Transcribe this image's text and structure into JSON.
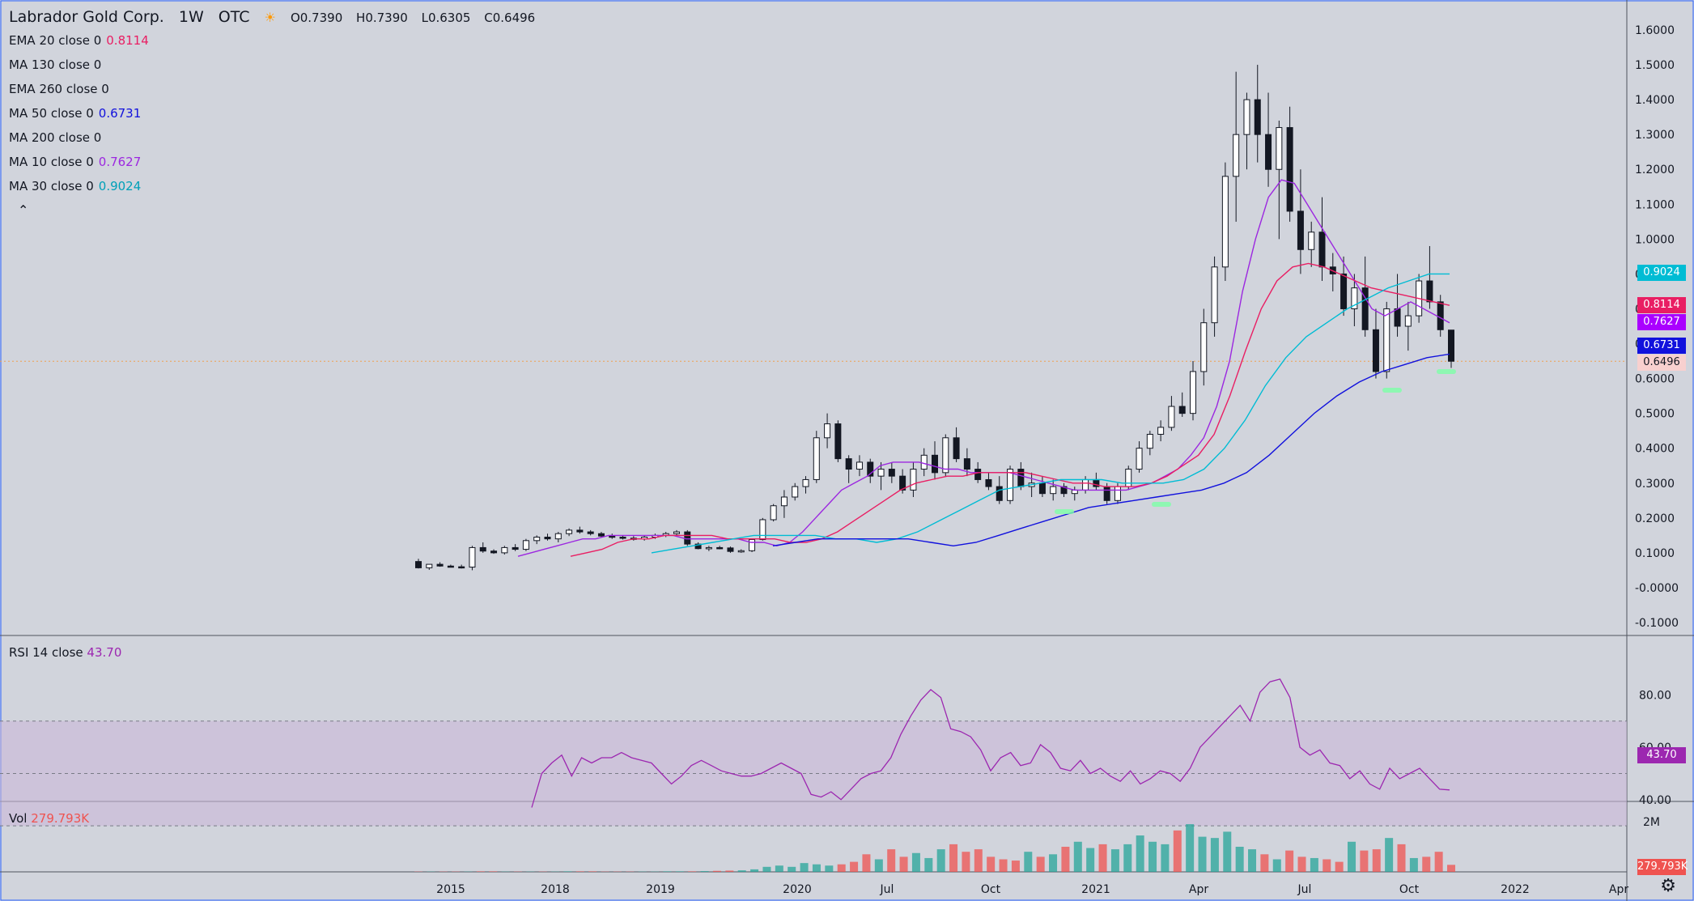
{
  "header": {
    "symbol": "Labrador Gold Corp.",
    "interval": "1W",
    "exchange": "OTC",
    "ohlc": {
      "o_label": "O",
      "o": "0.7390",
      "h_label": "H",
      "h": "0.7390",
      "l_label": "L",
      "l": "0.6305",
      "c_label": "C",
      "c": "0.6496"
    }
  },
  "indicators": [
    {
      "label": "EMA 20 close 0",
      "value": "0.8114",
      "color": "#e91e63"
    },
    {
      "label": "MA 130 close 0",
      "value": "",
      "color": "#131722"
    },
    {
      "label": "EMA 260 close 0",
      "value": "",
      "color": "#131722"
    },
    {
      "label": "MA 50 close 0",
      "value": "0.6731",
      "color": "#1111dd"
    },
    {
      "label": "MA 200 close 0",
      "value": "",
      "color": "#131722"
    },
    {
      "label": "MA 10 close 0",
      "value": "0.7627",
      "color": "#9c27e0"
    },
    {
      "label": "MA 30 close 0",
      "value": "0.9024",
      "color": "#00bcd4"
    }
  ],
  "rsi": {
    "label": "RSI 14 close",
    "value": "43.70",
    "color": "#9c27b0"
  },
  "volume": {
    "label": "Vol",
    "value": "279.793K",
    "color": "#ef5350"
  },
  "price_tags": [
    {
      "value": "0.9024",
      "price": 0.9024,
      "color": "#00bcd4"
    },
    {
      "value": "0.8114",
      "price": 0.8114,
      "color": "#e91e63"
    },
    {
      "value": "0.7627",
      "price": 0.7627,
      "color": "#aa00ff"
    },
    {
      "value": "0.6731",
      "price": 0.6731,
      "color": "#1111dd"
    },
    {
      "value": "0.6496",
      "price": 0.6496,
      "color": "#f8d0cf"
    }
  ],
  "chart_data": {
    "type": "candlestick",
    "y_axis": {
      "ticks": [
        "1.6000",
        "1.5000",
        "1.4000",
        "1.3000",
        "1.2000",
        "1.1000",
        "1.0000",
        "0.9000",
        "0.8000",
        "0.7000",
        "0.6000",
        "0.5000",
        "0.4000",
        "0.3000",
        "0.2000",
        "0.1000",
        "-0.0000",
        "-0.1000"
      ],
      "range": [
        -0.1,
        1.6
      ]
    },
    "rsi_axis": {
      "ticks": [
        "80.00",
        "60.00",
        "40.00"
      ],
      "bands": [
        30,
        50,
        70
      ]
    },
    "volume_axis": {
      "ticks": [
        "2M"
      ]
    },
    "x_axis": {
      "labels": [
        "2015",
        "2018",
        "2019",
        "2020",
        "Jul",
        "Oct",
        "2021",
        "Apr",
        "Jul",
        "Oct",
        "2022",
        "Apr"
      ]
    },
    "candles": [
      [
        0.075,
        0.083,
        0.055,
        0.057
      ],
      [
        0.057,
        0.067,
        0.051,
        0.067
      ],
      [
        0.067,
        0.073,
        0.06,
        0.062
      ],
      [
        0.062,
        0.066,
        0.058,
        0.06
      ],
      [
        0.06,
        0.066,
        0.055,
        0.059
      ],
      [
        0.059,
        0.12,
        0.05,
        0.115
      ],
      [
        0.115,
        0.13,
        0.1,
        0.105
      ],
      [
        0.105,
        0.11,
        0.097,
        0.1
      ],
      [
        0.1,
        0.12,
        0.095,
        0.115
      ],
      [
        0.115,
        0.125,
        0.105,
        0.11
      ],
      [
        0.11,
        0.14,
        0.105,
        0.135
      ],
      [
        0.135,
        0.15,
        0.125,
        0.145
      ],
      [
        0.145,
        0.155,
        0.135,
        0.14
      ],
      [
        0.14,
        0.16,
        0.13,
        0.155
      ],
      [
        0.155,
        0.17,
        0.148,
        0.165
      ],
      [
        0.165,
        0.175,
        0.155,
        0.16
      ],
      [
        0.16,
        0.165,
        0.15,
        0.155
      ],
      [
        0.155,
        0.16,
        0.145,
        0.148
      ],
      [
        0.148,
        0.155,
        0.14,
        0.145
      ],
      [
        0.145,
        0.15,
        0.138,
        0.142
      ],
      [
        0.142,
        0.148,
        0.135,
        0.14
      ],
      [
        0.14,
        0.15,
        0.135,
        0.145
      ],
      [
        0.145,
        0.155,
        0.14,
        0.15
      ],
      [
        0.15,
        0.16,
        0.145,
        0.155
      ],
      [
        0.155,
        0.165,
        0.15,
        0.16
      ],
      [
        0.16,
        0.165,
        0.12,
        0.125
      ],
      [
        0.125,
        0.13,
        0.11,
        0.112
      ],
      [
        0.112,
        0.12,
        0.105,
        0.115
      ],
      [
        0.115,
        0.12,
        0.11,
        0.114
      ],
      [
        0.114,
        0.118,
        0.1,
        0.104
      ],
      [
        0.104,
        0.11,
        0.1,
        0.106
      ],
      [
        0.106,
        0.14,
        0.102,
        0.138
      ],
      [
        0.138,
        0.2,
        0.135,
        0.195
      ],
      [
        0.195,
        0.24,
        0.19,
        0.235
      ],
      [
        0.235,
        0.28,
        0.2,
        0.26
      ],
      [
        0.26,
        0.3,
        0.25,
        0.29
      ],
      [
        0.29,
        0.32,
        0.27,
        0.31
      ],
      [
        0.31,
        0.45,
        0.3,
        0.43
      ],
      [
        0.43,
        0.5,
        0.4,
        0.47
      ],
      [
        0.47,
        0.48,
        0.36,
        0.37
      ],
      [
        0.37,
        0.38,
        0.3,
        0.34
      ],
      [
        0.34,
        0.38,
        0.32,
        0.36
      ],
      [
        0.36,
        0.37,
        0.3,
        0.32
      ],
      [
        0.32,
        0.36,
        0.28,
        0.34
      ],
      [
        0.34,
        0.36,
        0.3,
        0.32
      ],
      [
        0.32,
        0.34,
        0.27,
        0.28
      ],
      [
        0.28,
        0.36,
        0.26,
        0.34
      ],
      [
        0.34,
        0.4,
        0.32,
        0.38
      ],
      [
        0.38,
        0.42,
        0.31,
        0.33
      ],
      [
        0.33,
        0.44,
        0.32,
        0.43
      ],
      [
        0.43,
        0.46,
        0.36,
        0.37
      ],
      [
        0.37,
        0.4,
        0.32,
        0.34
      ],
      [
        0.34,
        0.36,
        0.3,
        0.31
      ],
      [
        0.31,
        0.33,
        0.28,
        0.29
      ],
      [
        0.29,
        0.32,
        0.24,
        0.25
      ],
      [
        0.25,
        0.35,
        0.24,
        0.34
      ],
      [
        0.34,
        0.36,
        0.28,
        0.29
      ],
      [
        0.29,
        0.33,
        0.26,
        0.3
      ],
      [
        0.3,
        0.32,
        0.26,
        0.27
      ],
      [
        0.27,
        0.31,
        0.25,
        0.29
      ],
      [
        0.29,
        0.3,
        0.26,
        0.27
      ],
      [
        0.27,
        0.29,
        0.25,
        0.28
      ],
      [
        0.28,
        0.32,
        0.27,
        0.31
      ],
      [
        0.31,
        0.33,
        0.28,
        0.29
      ],
      [
        0.29,
        0.3,
        0.24,
        0.25
      ],
      [
        0.25,
        0.3,
        0.24,
        0.29
      ],
      [
        0.29,
        0.35,
        0.28,
        0.34
      ],
      [
        0.34,
        0.42,
        0.33,
        0.4
      ],
      [
        0.4,
        0.45,
        0.38,
        0.44
      ],
      [
        0.44,
        0.48,
        0.42,
        0.46
      ],
      [
        0.46,
        0.55,
        0.45,
        0.52
      ],
      [
        0.52,
        0.56,
        0.49,
        0.5
      ],
      [
        0.5,
        0.65,
        0.48,
        0.62
      ],
      [
        0.62,
        0.8,
        0.58,
        0.76
      ],
      [
        0.76,
        0.95,
        0.72,
        0.92
      ],
      [
        0.92,
        1.22,
        0.88,
        1.18
      ],
      [
        1.18,
        1.48,
        1.05,
        1.3
      ],
      [
        1.3,
        1.42,
        1.2,
        1.4
      ],
      [
        1.4,
        1.5,
        1.22,
        1.3
      ],
      [
        1.3,
        1.42,
        1.15,
        1.2
      ],
      [
        1.2,
        1.34,
        1.0,
        1.32
      ],
      [
        1.32,
        1.38,
        1.05,
        1.08
      ],
      [
        1.08,
        1.2,
        0.9,
        0.97
      ],
      [
        0.97,
        1.05,
        0.92,
        1.02
      ],
      [
        1.02,
        1.12,
        0.88,
        0.92
      ],
      [
        0.92,
        0.96,
        0.85,
        0.9
      ],
      [
        0.9,
        0.95,
        0.78,
        0.8
      ],
      [
        0.8,
        0.9,
        0.75,
        0.86
      ],
      [
        0.86,
        0.95,
        0.72,
        0.74
      ],
      [
        0.74,
        0.8,
        0.6,
        0.62
      ],
      [
        0.62,
        0.82,
        0.6,
        0.8
      ],
      [
        0.8,
        0.9,
        0.72,
        0.75
      ],
      [
        0.75,
        0.82,
        0.68,
        0.78
      ],
      [
        0.78,
        0.9,
        0.76,
        0.88
      ],
      [
        0.88,
        0.98,
        0.8,
        0.82
      ],
      [
        0.82,
        0.84,
        0.72,
        0.74
      ],
      [
        0.739,
        0.739,
        0.6305,
        0.6496
      ]
    ],
    "series": [
      {
        "name": "MA 10 close 0",
        "color": "#9c27e0",
        "values": [
          0.09,
          0.1,
          0.11,
          0.12,
          0.13,
          0.14,
          0.14,
          0.15,
          0.15,
          0.15,
          0.15,
          0.15,
          0.15,
          0.14,
          0.14,
          0.14,
          0.14,
          0.14,
          0.13,
          0.13,
          0.12,
          0.13,
          0.16,
          0.2,
          0.24,
          0.28,
          0.3,
          0.32,
          0.35,
          0.36,
          0.36,
          0.36,
          0.35,
          0.34,
          0.34,
          0.33,
          0.33,
          0.33,
          0.33,
          0.32,
          0.31,
          0.3,
          0.29,
          0.28,
          0.28,
          0.28,
          0.28,
          0.28,
          0.29,
          0.3,
          0.32,
          0.34,
          0.38,
          0.43,
          0.52,
          0.65,
          0.85,
          1.0,
          1.12,
          1.17,
          1.16,
          1.1,
          1.04,
          0.98,
          0.92,
          0.86,
          0.8,
          0.78,
          0.8,
          0.82,
          0.8,
          0.78,
          0.76
        ]
      },
      {
        "name": "EMA 20 close 0",
        "color": "#e91e63",
        "values": [
          0.09,
          0.1,
          0.11,
          0.13,
          0.14,
          0.14,
          0.15,
          0.15,
          0.15,
          0.15,
          0.14,
          0.14,
          0.14,
          0.14,
          0.13,
          0.13,
          0.14,
          0.16,
          0.19,
          0.22,
          0.25,
          0.28,
          0.3,
          0.31,
          0.32,
          0.32,
          0.33,
          0.33,
          0.33,
          0.33,
          0.32,
          0.31,
          0.3,
          0.3,
          0.29,
          0.29,
          0.29,
          0.3,
          0.32,
          0.35,
          0.38,
          0.44,
          0.55,
          0.68,
          0.8,
          0.88,
          0.92,
          0.93,
          0.92,
          0.9,
          0.88,
          0.86,
          0.85,
          0.84,
          0.83,
          0.82,
          0.81
        ]
      },
      {
        "name": "MA 30 close 0",
        "color": "#00bcd4",
        "values": [
          0.1,
          0.11,
          0.12,
          0.13,
          0.14,
          0.15,
          0.15,
          0.15,
          0.15,
          0.14,
          0.14,
          0.13,
          0.14,
          0.16,
          0.19,
          0.22,
          0.25,
          0.28,
          0.29,
          0.3,
          0.31,
          0.31,
          0.31,
          0.3,
          0.3,
          0.3,
          0.31,
          0.34,
          0.4,
          0.48,
          0.58,
          0.66,
          0.72,
          0.76,
          0.8,
          0.83,
          0.86,
          0.88,
          0.9,
          0.9
        ]
      },
      {
        "name": "MA 50 close 0",
        "color": "#1111dd",
        "values": [
          0.12,
          0.13,
          0.14,
          0.14,
          0.14,
          0.14,
          0.14,
          0.13,
          0.12,
          0.13,
          0.15,
          0.17,
          0.19,
          0.21,
          0.23,
          0.24,
          0.25,
          0.26,
          0.27,
          0.28,
          0.3,
          0.33,
          0.38,
          0.44,
          0.5,
          0.55,
          0.59,
          0.62,
          0.64,
          0.66,
          0.67
        ]
      }
    ],
    "rsi_values": [
      37,
      50,
      54,
      57,
      49,
      56,
      54,
      56,
      56,
      58,
      56,
      55,
      54,
      50,
      46,
      49,
      53,
      55,
      53,
      51,
      50,
      49,
      49,
      50,
      52,
      54,
      52,
      50,
      42,
      41,
      43,
      40,
      44,
      48,
      50,
      51,
      56,
      65,
      72,
      78,
      82,
      79,
      67,
      66,
      64,
      59,
      51,
      56,
      58,
      53,
      54,
      61,
      58,
      52,
      51,
      55,
      50,
      52,
      49,
      47,
      51,
      46,
      48,
      51,
      50,
      47,
      52,
      60,
      64,
      68,
      72,
      76,
      70,
      81,
      85,
      86,
      79,
      60,
      57,
      59,
      54,
      53,
      48,
      51,
      46,
      44,
      52,
      48,
      50,
      52,
      48,
      44,
      43.7
    ],
    "volume_values": [
      0.01,
      0.01,
      0.01,
      0.01,
      0.01,
      0.02,
      0.02,
      0.01,
      0.01,
      0.01,
      0.01,
      0.01,
      0.02,
      0.02,
      0.02,
      0.01,
      0.01,
      0.01,
      0.01,
      0.01,
      0.02,
      0.02,
      0.02,
      0.03,
      0.04,
      0.05,
      0.06,
      0.1,
      0.2,
      0.25,
      0.2,
      0.35,
      0.3,
      0.25,
      0.3,
      0.4,
      0.7,
      0.5,
      0.9,
      0.6,
      0.75,
      0.55,
      0.9,
      1.1,
      0.8,
      0.9,
      0.6,
      0.5,
      0.45,
      0.8,
      0.6,
      0.7,
      1.0,
      1.2,
      0.95,
      1.1,
      0.9,
      1.1,
      1.45,
      1.2,
      1.1,
      1.65,
      1.9,
      1.4,
      1.35,
      1.6,
      1.0,
      0.9,
      0.7,
      0.5,
      0.85,
      0.6,
      0.55,
      0.5,
      0.4,
      1.2,
      0.85,
      0.9,
      1.35,
      1.1,
      0.55,
      0.6,
      0.8,
      0.28
    ],
    "volume_colors_up": "#26a69a",
    "volume_colors_down": "#ef5350"
  }
}
